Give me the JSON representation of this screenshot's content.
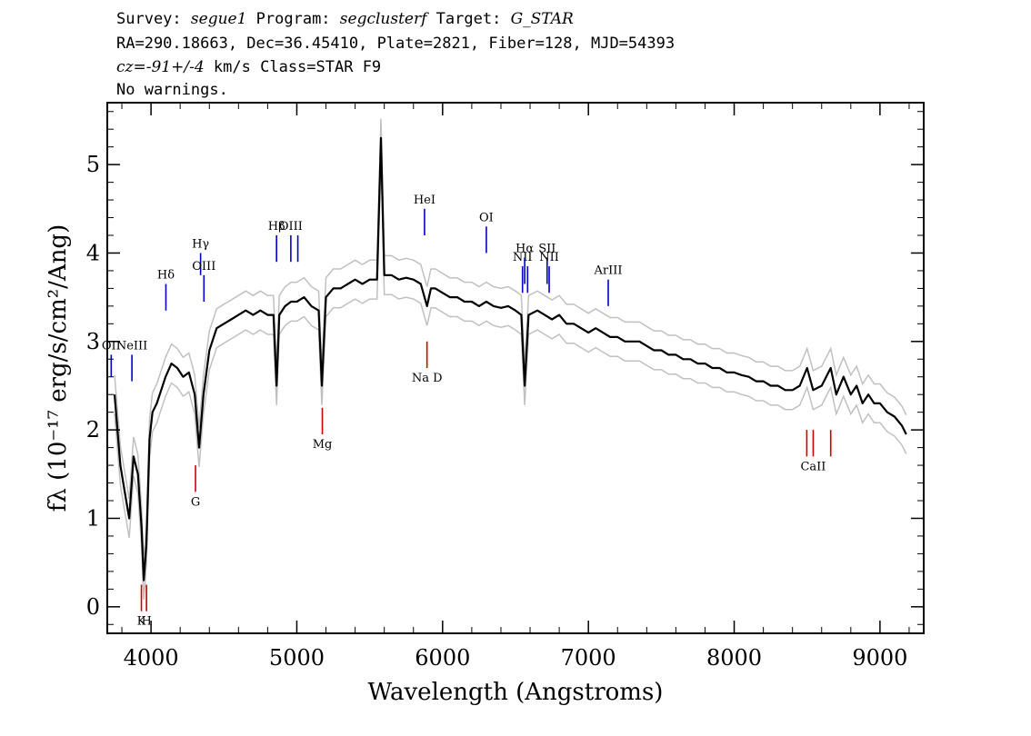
{
  "header": {
    "survey_label": "Survey:",
    "survey": "segue1",
    "program_label": "Program:",
    "program": "segclusterf",
    "target_label": "Target:",
    "target": "G_STAR",
    "line2": "RA=290.18663, Dec=36.45410, Plate=2821, Fiber=128, MJD=54393",
    "cz_label": "cz=",
    "cz_value": "-91+/-4",
    "cz_unit": "km/s",
    "class_text": "Class=STAR F9",
    "line4": "No warnings."
  },
  "colors": {
    "flux": "#000000",
    "error": "#c0c0c0",
    "emission_marker": "#0000cc",
    "absorption_marker": "#cc0000"
  },
  "chart_data": {
    "type": "line",
    "xlabel": "Wavelength (Angstroms)",
    "ylabel": "fλ (10⁻¹⁷ erg/s/cm²/Ang)",
    "xlim": [
      3700,
      9300
    ],
    "ylim": [
      -0.3,
      5.7
    ],
    "xticks": [
      4000,
      5000,
      6000,
      7000,
      8000,
      9000
    ],
    "xtick_labels": [
      "4000",
      "5000",
      "6000",
      "7000",
      "8000",
      "9000"
    ],
    "yticks": [
      0,
      1,
      2,
      3,
      4,
      5
    ],
    "ytick_labels": [
      "0",
      "1",
      "2",
      "3",
      "4",
      "5"
    ],
    "grid": false,
    "series": [
      {
        "role": "flux",
        "x": [
          3750,
          3790,
          3820,
          3850,
          3880,
          3910,
          3935,
          3950,
          3968,
          3990,
          4010,
          4040,
          4070,
          4100,
          4140,
          4180,
          4220,
          4260,
          4300,
          4330,
          4360,
          4400,
          4450,
          4500,
          4550,
          4600,
          4650,
          4700,
          4750,
          4800,
          4840,
          4861,
          4880,
          4920,
          4960,
          5000,
          5050,
          5100,
          5150,
          5172,
          5200,
          5250,
          5300,
          5350,
          5400,
          5450,
          5500,
          5550,
          5577,
          5600,
          5650,
          5700,
          5750,
          5800,
          5850,
          5893,
          5920,
          5950,
          6000,
          6050,
          6100,
          6150,
          6200,
          6250,
          6300,
          6350,
          6400,
          6450,
          6500,
          6540,
          6563,
          6590,
          6650,
          6700,
          6750,
          6800,
          6850,
          6900,
          6950,
          7000,
          7050,
          7100,
          7150,
          7200,
          7250,
          7300,
          7350,
          7400,
          7450,
          7500,
          7550,
          7600,
          7650,
          7700,
          7750,
          7800,
          7850,
          7900,
          7950,
          8000,
          8050,
          8100,
          8150,
          8200,
          8250,
          8300,
          8350,
          8400,
          8450,
          8500,
          8542,
          8600,
          8662,
          8700,
          8750,
          8800,
          8840,
          8880,
          8920,
          8960,
          9000,
          9050,
          9100,
          9150,
          9180
        ],
        "y": [
          2.4,
          1.6,
          1.3,
          1.0,
          1.7,
          1.5,
          0.9,
          0.3,
          0.7,
          1.9,
          2.2,
          2.3,
          2.45,
          2.6,
          2.75,
          2.7,
          2.6,
          2.65,
          2.4,
          1.8,
          2.4,
          2.9,
          3.15,
          3.2,
          3.25,
          3.3,
          3.35,
          3.3,
          3.35,
          3.3,
          3.3,
          2.5,
          3.3,
          3.4,
          3.45,
          3.45,
          3.5,
          3.4,
          3.35,
          2.5,
          3.5,
          3.6,
          3.6,
          3.65,
          3.7,
          3.65,
          3.7,
          3.7,
          5.3,
          3.75,
          3.75,
          3.7,
          3.72,
          3.7,
          3.65,
          3.4,
          3.6,
          3.6,
          3.55,
          3.5,
          3.5,
          3.45,
          3.45,
          3.4,
          3.45,
          3.4,
          3.38,
          3.4,
          3.35,
          3.3,
          2.5,
          3.3,
          3.35,
          3.3,
          3.25,
          3.3,
          3.2,
          3.2,
          3.15,
          3.1,
          3.15,
          3.1,
          3.05,
          3.05,
          3.0,
          3.0,
          3.0,
          2.95,
          2.9,
          2.9,
          2.85,
          2.85,
          2.8,
          2.8,
          2.75,
          2.75,
          2.7,
          2.7,
          2.65,
          2.65,
          2.62,
          2.6,
          2.55,
          2.55,
          2.5,
          2.5,
          2.45,
          2.45,
          2.5,
          2.7,
          2.45,
          2.5,
          2.7,
          2.4,
          2.6,
          2.4,
          2.5,
          2.3,
          2.4,
          2.3,
          2.3,
          2.2,
          2.15,
          2.05,
          1.95
        ]
      },
      {
        "role": "error_band",
        "half_width": 0.22
      }
    ],
    "spectral_lines": [
      {
        "label": "OII",
        "wavelength": 3727,
        "y_top": 2.85,
        "y_bottom": 2.6,
        "kind": "emission"
      },
      {
        "label": "NeIII",
        "wavelength": 3869,
        "y_top": 2.85,
        "y_bottom": 2.55,
        "kind": "emission"
      },
      {
        "label": "Hδ",
        "wavelength": 4102,
        "y_top": 3.65,
        "y_bottom": 3.35,
        "kind": "emission"
      },
      {
        "label": "Hγ",
        "wavelength": 4340,
        "y_top": 4.0,
        "y_bottom": 3.75,
        "kind": "emission"
      },
      {
        "label": "OIII",
        "wavelength": 4363,
        "y_top": 3.75,
        "y_bottom": 3.45,
        "kind": "emission"
      },
      {
        "label": "Hβ",
        "wavelength": 4861,
        "y_top": 4.2,
        "y_bottom": 3.9,
        "kind": "emission"
      },
      {
        "label": "OIII",
        "wavelength": 4959,
        "y_top": 4.2,
        "y_bottom": 3.9,
        "kind": "emission"
      },
      {
        "label": "",
        "wavelength": 5007,
        "y_top": 4.2,
        "y_bottom": 3.9,
        "kind": "emission"
      },
      {
        "label": "HeI",
        "wavelength": 5876,
        "y_top": 4.5,
        "y_bottom": 4.2,
        "kind": "emission"
      },
      {
        "label": "OI",
        "wavelength": 6300,
        "y_top": 4.3,
        "y_bottom": 4.0,
        "kind": "emission"
      },
      {
        "label": "NII",
        "wavelength": 6548,
        "y_top": 3.85,
        "y_bottom": 3.55,
        "kind": "emission"
      },
      {
        "label": "Hα",
        "wavelength": 6563,
        "y_top": 3.95,
        "y_bottom": 3.65,
        "kind": "emission"
      },
      {
        "label": "",
        "wavelength": 6583,
        "y_top": 3.85,
        "y_bottom": 3.55,
        "kind": "emission"
      },
      {
        "label": "SII",
        "wavelength": 6717,
        "y_top": 3.95,
        "y_bottom": 3.65,
        "kind": "emission"
      },
      {
        "label": "NII",
        "wavelength": 6731,
        "y_top": 3.85,
        "y_bottom": 3.55,
        "kind": "emission"
      },
      {
        "label": "ArIII",
        "wavelength": 7136,
        "y_top": 3.7,
        "y_bottom": 3.4,
        "kind": "emission"
      },
      {
        "label": "K",
        "wavelength": 3934,
        "y_top": 0.25,
        "y_bottom": -0.05,
        "kind": "absorption"
      },
      {
        "label": "H",
        "wavelength": 3969,
        "y_top": 0.25,
        "y_bottom": -0.05,
        "kind": "absorption"
      },
      {
        "label": "G",
        "wavelength": 4305,
        "y_top": 1.6,
        "y_bottom": 1.3,
        "kind": "absorption"
      },
      {
        "label": "Mg",
        "wavelength": 5175,
        "y_top": 2.25,
        "y_bottom": 1.95,
        "kind": "absorption"
      },
      {
        "label": "Na D",
        "wavelength": 5893,
        "y_top": 3.0,
        "y_bottom": 2.7,
        "kind": "absorption"
      },
      {
        "label": "",
        "wavelength": 8498,
        "y_top": 2.0,
        "y_bottom": 1.7,
        "kind": "absorption"
      },
      {
        "label": "CaII",
        "wavelength": 8542,
        "y_top": 2.0,
        "y_bottom": 1.7,
        "kind": "absorption"
      },
      {
        "label": "",
        "wavelength": 8662,
        "y_top": 2.0,
        "y_bottom": 1.7,
        "kind": "absorption"
      }
    ]
  }
}
